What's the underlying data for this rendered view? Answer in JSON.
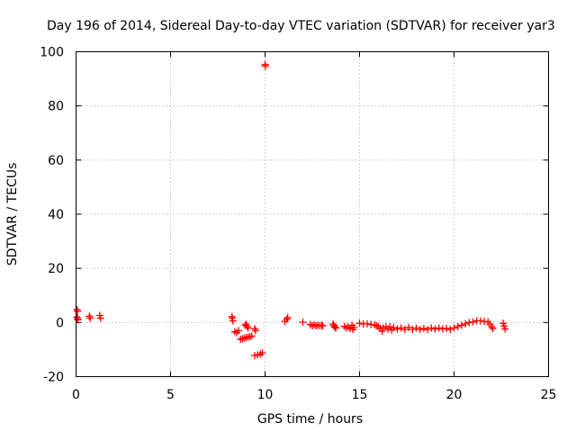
{
  "colors": {
    "series": "#ff0000",
    "grid": "#a0a0a0",
    "axis": "#000000"
  },
  "chart_data": {
    "type": "scatter",
    "title": "Day 196 of 2014, Sidereal Day-to-day VTEC variation (SDTVAR) for receiver yar3",
    "xlabel": "GPS time / hours",
    "ylabel": "SDTVAR / TECUs",
    "xlim": [
      0,
      25
    ],
    "ylim": [
      -20,
      100
    ],
    "xticks": [
      0,
      5,
      10,
      15,
      20,
      25
    ],
    "yticks": [
      -20,
      0,
      20,
      40,
      60,
      80,
      100
    ],
    "grid": true,
    "legend": "none",
    "marker": "plus",
    "series": [
      {
        "name": "yar3",
        "points": [
          [
            0.05,
            4.8
          ],
          [
            0.08,
            4.2
          ],
          [
            0.05,
            2.0
          ],
          [
            0.08,
            1.4
          ],
          [
            0.1,
            1.0
          ],
          [
            0.7,
            2.3
          ],
          [
            0.75,
            1.6
          ],
          [
            1.25,
            2.6
          ],
          [
            1.3,
            1.6
          ],
          [
            8.25,
            2.2
          ],
          [
            8.27,
            1.6
          ],
          [
            8.3,
            0.6
          ],
          [
            8.4,
            -3.4
          ],
          [
            8.5,
            -3.8
          ],
          [
            8.6,
            -3.0
          ],
          [
            8.7,
            -6.2
          ],
          [
            8.8,
            -6.0
          ],
          [
            8.9,
            -5.8
          ],
          [
            9.0,
            -5.6
          ],
          [
            9.1,
            -5.4
          ],
          [
            9.2,
            -5.2
          ],
          [
            9.3,
            -5.0
          ],
          [
            8.95,
            -1.0
          ],
          [
            9.0,
            -0.6
          ],
          [
            9.05,
            -1.4
          ],
          [
            9.1,
            -2.0
          ],
          [
            9.45,
            -2.3
          ],
          [
            9.5,
            -3.0
          ],
          [
            9.45,
            -12.2
          ],
          [
            9.6,
            -12.0
          ],
          [
            9.75,
            -11.7
          ],
          [
            9.85,
            -11.2
          ],
          [
            10.0,
            95.3
          ],
          [
            10.02,
            94.7
          ],
          [
            11.05,
            0.4
          ],
          [
            11.15,
            1.2
          ],
          [
            11.2,
            1.8
          ],
          [
            12.0,
            0.1
          ],
          [
            12.4,
            -0.7
          ],
          [
            12.5,
            -1.2
          ],
          [
            12.6,
            -0.8
          ],
          [
            12.7,
            -1.2
          ],
          [
            12.8,
            -1.0
          ],
          [
            12.9,
            -1.2
          ],
          [
            13.0,
            -1.0
          ],
          [
            13.05,
            -1.2
          ],
          [
            13.6,
            -0.6
          ],
          [
            13.65,
            -1.2
          ],
          [
            13.7,
            -1.7
          ],
          [
            13.75,
            -2.0
          ],
          [
            14.2,
            -1.4
          ],
          [
            14.3,
            -2.0
          ],
          [
            14.4,
            -1.6
          ],
          [
            14.5,
            -2.2
          ],
          [
            14.6,
            -1.0
          ],
          [
            14.65,
            -2.6
          ],
          [
            14.7,
            -1.8
          ],
          [
            15.0,
            -0.3
          ],
          [
            15.2,
            -0.5
          ],
          [
            15.4,
            -0.5
          ],
          [
            15.6,
            -0.7
          ],
          [
            15.8,
            -0.9
          ],
          [
            15.9,
            -1.2
          ],
          [
            16.0,
            -1.5
          ],
          [
            16.1,
            -2.2
          ],
          [
            16.2,
            -3.2
          ],
          [
            16.25,
            -2.0
          ],
          [
            16.4,
            -1.5
          ],
          [
            16.5,
            -2.4
          ],
          [
            16.6,
            -1.6
          ],
          [
            16.7,
            -2.8
          ],
          [
            16.8,
            -1.9
          ],
          [
            17.0,
            -2.4
          ],
          [
            17.2,
            -2.0
          ],
          [
            17.4,
            -2.6
          ],
          [
            17.6,
            -1.8
          ],
          [
            17.8,
            -2.6
          ],
          [
            18.0,
            -2.0
          ],
          [
            18.2,
            -2.6
          ],
          [
            18.4,
            -2.2
          ],
          [
            18.6,
            -2.6
          ],
          [
            18.8,
            -2.0
          ],
          [
            19.0,
            -2.4
          ],
          [
            19.2,
            -2.0
          ],
          [
            19.4,
            -2.4
          ],
          [
            19.6,
            -2.2
          ],
          [
            19.8,
            -2.6
          ],
          [
            20.0,
            -2.0
          ],
          [
            20.2,
            -1.5
          ],
          [
            20.4,
            -1.0
          ],
          [
            20.6,
            -0.5
          ],
          [
            20.8,
            0.0
          ],
          [
            21.0,
            0.2
          ],
          [
            21.2,
            0.6
          ],
          [
            21.4,
            0.6
          ],
          [
            21.6,
            0.4
          ],
          [
            21.8,
            0.2
          ],
          [
            21.9,
            -0.6
          ],
          [
            22.0,
            -1.6
          ],
          [
            22.05,
            -2.2
          ],
          [
            22.6,
            -0.3
          ],
          [
            22.65,
            -1.3
          ],
          [
            22.7,
            -2.4
          ]
        ]
      }
    ]
  }
}
